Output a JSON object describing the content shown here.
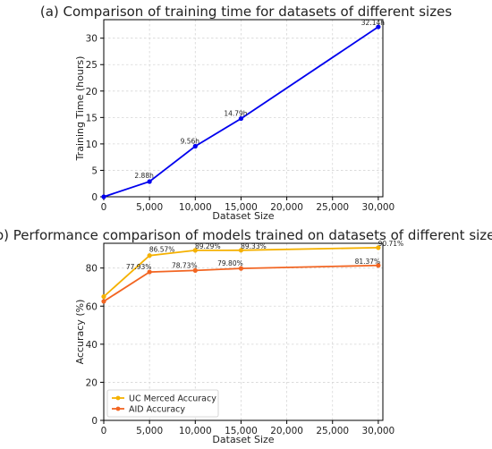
{
  "chart_data": [
    {
      "type": "line",
      "title": "(a) Comparison of training time for datasets of different sizes",
      "xlabel": "Dataset Size",
      "ylabel": "Training Time (hours)",
      "xlim": [
        0,
        30500
      ],
      "ylim": [
        0,
        33.5
      ],
      "xticks": [
        0,
        5000,
        10000,
        15000,
        20000,
        25000,
        30000
      ],
      "xtick_labels": [
        "0",
        "5,000",
        "10,000",
        "15,000",
        "20,000",
        "25,000",
        "30,000"
      ],
      "yticks": [
        0,
        5,
        10,
        15,
        20,
        25,
        30
      ],
      "ytick_labels": [
        "0",
        "5",
        "10",
        "15",
        "20",
        "25",
        "30"
      ],
      "grid": true,
      "series": [
        {
          "color": "#0000ee",
          "x": [
            0,
            5000,
            10000,
            15000,
            30000
          ],
          "values": [
            0,
            2.88,
            9.56,
            14.79,
            32.14
          ],
          "data_labels": [
            "",
            "2.88h",
            "9.56h",
            "14.79h",
            "32.14h"
          ]
        }
      ]
    },
    {
      "type": "line",
      "title": "(b) Performance comparison of models trained on datasets of different sizes",
      "xlabel": "Dataset Size",
      "ylabel": "Accuracy (%)",
      "xlim": [
        0,
        30500
      ],
      "ylim": [
        0,
        93
      ],
      "xticks": [
        0,
        5000,
        10000,
        15000,
        20000,
        25000,
        30000
      ],
      "xtick_labels": [
        "0",
        "5,000",
        "10,000",
        "15,000",
        "20,000",
        "25,000",
        "30,000"
      ],
      "yticks": [
        0,
        20,
        40,
        60,
        80
      ],
      "ytick_labels": [
        "0",
        "20",
        "40",
        "60",
        "80"
      ],
      "grid": true,
      "legend": "lower-left",
      "series": [
        {
          "name": "UC Merced Accuracy",
          "color": "#f5b100",
          "x": [
            0,
            5000,
            10000,
            15000,
            30000
          ],
          "values": [
            65,
            86.57,
            89.29,
            89.33,
            90.71
          ],
          "data_labels": [
            "",
            "86.57%",
            "89.29%",
            "89.33%",
            "90.71%"
          ]
        },
        {
          "name": "AID Accuracy",
          "color": "#f26522",
          "x": [
            0,
            5000,
            10000,
            15000,
            30000
          ],
          "values": [
            62.5,
            77.93,
            78.73,
            79.8,
            81.37
          ],
          "data_labels": [
            "",
            "77.93%",
            "78.73%",
            "79.80%",
            "81.37%"
          ]
        }
      ]
    }
  ]
}
